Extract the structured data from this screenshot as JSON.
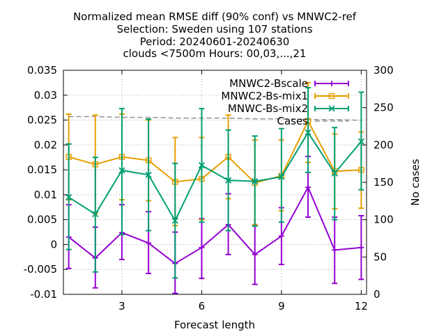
{
  "chart_data": {
    "type": "line",
    "title_lines": [
      "Normalized mean RMSE diff (90% conf) vs MNWC2-ref",
      "Selection: Sweden using   107 stations",
      "Period: 20240601-20240630",
      "clouds <7500m   Hours: 00,03,...,21"
    ],
    "xlabel": "Forecast length",
    "ylabel": "",
    "y2label": "No cases",
    "xlim": [
      0.8,
      12.2
    ],
    "ylim": [
      -0.01,
      0.035
    ],
    "y2lim": [
      0,
      300
    ],
    "x_ticks": [
      3,
      6,
      9,
      12
    ],
    "y_ticks": [
      -0.01,
      -0.005,
      0,
      0.005,
      0.01,
      0.015,
      0.02,
      0.025,
      0.03,
      0.035
    ],
    "y_tick_labels": [
      "-0.01",
      "-0.005",
      "0",
      "0.005",
      "0.01",
      "0.015",
      "0.02",
      "0.025",
      "0.03",
      "0.035"
    ],
    "y2_ticks": [
      0,
      50,
      100,
      150,
      200,
      250,
      300
    ],
    "grid": true,
    "legend_position": "top-right",
    "series": [
      {
        "name": "MNWC2-Bscale",
        "color": "#9400d3",
        "marker": "plus",
        "x": [
          1,
          2,
          3,
          4,
          5,
          6,
          7,
          8,
          9,
          10,
          11,
          12
        ],
        "y": [
          0.0015,
          -0.0027,
          0.0024,
          0.0003,
          -0.0038,
          -0.0006,
          0.004,
          -0.002,
          0.0017,
          0.0115,
          -0.0011,
          -0.0006
        ],
        "err_low": [
          -0.0048,
          -0.0087,
          -0.003,
          -0.0058,
          -0.0098,
          -0.0068,
          -0.002,
          -0.008,
          -0.004,
          0.0055,
          -0.0078,
          -0.007
        ],
        "err_high": [
          0.008,
          0.0035,
          0.008,
          0.0066,
          0.0025,
          0.0052,
          0.0102,
          0.004,
          0.0074,
          0.0177,
          0.0055,
          0.0058
        ]
      },
      {
        "name": "MNWC2-Bs-mix1",
        "color": "#e69f00",
        "marker": "square",
        "x": [
          1,
          2,
          3,
          4,
          5,
          6,
          7,
          8,
          9,
          10,
          11,
          12
        ],
        "y": [
          0.0176,
          0.0161,
          0.0176,
          0.0169,
          0.0126,
          0.0132,
          0.0176,
          0.0124,
          0.0138,
          0.0248,
          0.0147,
          0.015
        ],
        "err_low": [
          0.009,
          0.0062,
          0.009,
          0.0088,
          0.0038,
          0.005,
          0.0092,
          0.004,
          0.0068,
          0.0165,
          0.0072,
          0.0073
        ],
        "err_high": [
          0.0262,
          0.026,
          0.0262,
          0.025,
          0.0215,
          0.0215,
          0.026,
          0.021,
          0.021,
          0.0325,
          0.0222,
          0.0226
        ]
      },
      {
        "name": "MNWC-Bs-mix2",
        "color": "#009e73",
        "marker": "x",
        "x": [
          1,
          2,
          3,
          4,
          5,
          6,
          7,
          8,
          9,
          10,
          11,
          12
        ],
        "y": [
          0.0095,
          0.0061,
          0.0149,
          0.014,
          0.0048,
          0.0159,
          0.0129,
          0.0127,
          0.0136,
          0.0225,
          0.0143,
          0.0207
        ],
        "err_low": [
          -0.001,
          -0.0055,
          0.002,
          0.0028,
          -0.0067,
          0.0045,
          0.0028,
          0.0037,
          0.0045,
          0.0145,
          0.005,
          0.011
        ],
        "err_high": [
          0.0202,
          0.0175,
          0.0273,
          0.0252,
          0.0163,
          0.0273,
          0.023,
          0.0218,
          0.0233,
          0.0315,
          0.0235,
          0.0306
        ]
      },
      {
        "name": "Cases",
        "color": "#909090",
        "marker": "none",
        "axis": "y2",
        "x": [
          1,
          2,
          3,
          4,
          5,
          6,
          7,
          8,
          9,
          10,
          11,
          12
        ],
        "y": [
          238,
          238,
          237,
          237,
          236,
          236,
          236,
          235,
          235,
          234,
          234,
          233
        ]
      }
    ]
  }
}
